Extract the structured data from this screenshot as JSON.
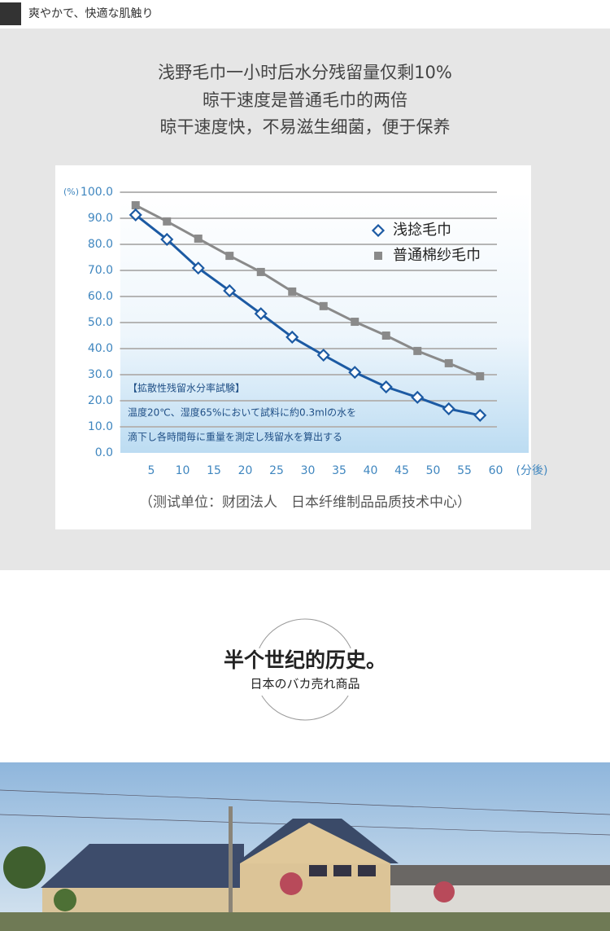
{
  "header": {
    "tag": "爽やかで、快適な肌触り"
  },
  "headline": [
    "浅野毛巾一小时后水分残留量仅剩10%",
    "晾干速度是普通毛巾的两倍",
    "晾干速度快，不易滋生细菌，便于保养"
  ],
  "chart_data": {
    "type": "line",
    "y_label": "(%)",
    "x_label": "(分後)",
    "x": [
      2.5,
      7.5,
      12.5,
      17.5,
      22.5,
      27.5,
      32.5,
      37.5,
      42.5,
      47.5,
      52.5,
      57.5
    ],
    "series": [
      {
        "name": "浅捻毛巾",
        "color": "#1c5aa3",
        "marker": "diamond",
        "values": [
          91.3,
          81.9,
          70.9,
          62.2,
          53.4,
          44.4,
          37.5,
          30.9,
          25.3,
          21.3,
          16.9,
          14.4
        ]
      },
      {
        "name": "普通棉纱毛巾",
        "color": "#8a8a8a",
        "marker": "square",
        "values": [
          95,
          88.8,
          82.2,
          75.6,
          69.4,
          61.9,
          56.3,
          50.3,
          45,
          39.1,
          34.4,
          29.4
        ]
      }
    ],
    "xlim": [
      0,
      65
    ],
    "ylim": [
      0,
      100
    ],
    "xticks": [
      5,
      10,
      15,
      20,
      25,
      30,
      35,
      40,
      45,
      50,
      55,
      60
    ],
    "yticks": [
      {
        "value": 0,
        "label": "0.0"
      },
      {
        "value": 10,
        "label": "10.0"
      },
      {
        "value": 20,
        "label": "20.0"
      },
      {
        "value": 30,
        "label": "30.0"
      },
      {
        "value": 40,
        "label": "40.0"
      },
      {
        "value": 50,
        "label": "50.0"
      },
      {
        "value": 60,
        "label": "60.0"
      },
      {
        "value": 70,
        "label": "70.0"
      },
      {
        "value": 80,
        "label": "80.0"
      },
      {
        "value": 90,
        "label": "90.0"
      },
      {
        "value": 100,
        "label": "100.0"
      }
    ],
    "grid": true,
    "legend": "upper right",
    "annotations": [
      "【拡散性残留水分率試験】",
      "温度20℃、湿度65%において試料に約0.3mlの水を",
      "滴下し各時間毎に重量を測定し残留水を算出する"
    ]
  },
  "footnote": "（测试单位：财团法人　日本纤维制品品质技术中心）",
  "section": {
    "title": "半个世纪的历史。",
    "subtitle": "日本のバカ売れ商品"
  }
}
